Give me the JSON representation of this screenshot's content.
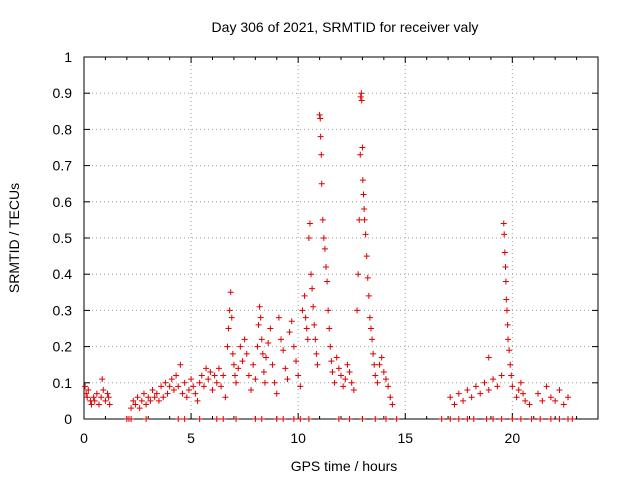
{
  "chart_data": {
    "type": "scatter",
    "title": "Day 306 of 2021, SRMTID for receiver valy",
    "xlabel": "GPS time / hours",
    "ylabel": "SRMTID / TECUs",
    "xlim": [
      0,
      24
    ],
    "ylim": [
      0,
      1
    ],
    "xticks": [
      0,
      5,
      10,
      15,
      20
    ],
    "xtick_labels": [
      "0",
      "5",
      "10",
      "15",
      "20"
    ],
    "yticks": [
      0,
      0.1,
      0.2,
      0.3,
      0.4,
      0.5,
      0.6,
      0.7,
      0.8,
      0.9,
      1
    ],
    "ytick_labels": [
      "0",
      "0.1",
      "0.2",
      "0.3",
      "0.4",
      "0.5",
      "0.6",
      "0.7",
      "0.8",
      "0.9",
      "1"
    ],
    "grid": true,
    "marker": "+",
    "series": [
      {
        "name": "SRMTID",
        "color": "#e00000",
        "points": [
          [
            0.05,
            0.09
          ],
          [
            0.1,
            0.07
          ],
          [
            0.15,
            0.06
          ],
          [
            0.2,
            0.08
          ],
          [
            0.3,
            0.05
          ],
          [
            0.35,
            0.04
          ],
          [
            0.45,
            0.06
          ],
          [
            0.5,
            0.05
          ],
          [
            0.6,
            0.07
          ],
          [
            0.7,
            0.04
          ],
          [
            0.8,
            0.06
          ],
          [
            0.85,
            0.11
          ],
          [
            0.9,
            0.08
          ],
          [
            1.0,
            0.05
          ],
          [
            1.1,
            0.07
          ],
          [
            1.15,
            0.06
          ],
          [
            1.2,
            0.04
          ],
          [
            2.0,
            0.0
          ],
          [
            2.1,
            0.0
          ],
          [
            2.2,
            0.0
          ],
          [
            2.9,
            0.0
          ],
          [
            2.2,
            0.03
          ],
          [
            2.3,
            0.05
          ],
          [
            2.4,
            0.04
          ],
          [
            2.5,
            0.06
          ],
          [
            2.6,
            0.03
          ],
          [
            2.7,
            0.05
          ],
          [
            2.8,
            0.07
          ],
          [
            2.9,
            0.04
          ],
          [
            3.0,
            0.06
          ],
          [
            3.1,
            0.05
          ],
          [
            3.2,
            0.08
          ],
          [
            3.3,
            0.06
          ],
          [
            3.4,
            0.07
          ],
          [
            3.5,
            0.05
          ],
          [
            3.6,
            0.09
          ],
          [
            3.7,
            0.06
          ],
          [
            3.8,
            0.1
          ],
          [
            3.9,
            0.07
          ],
          [
            4.0,
            0.09
          ],
          [
            4.1,
            0.11
          ],
          [
            4.2,
            0.08
          ],
          [
            4.3,
            0.12
          ],
          [
            4.4,
            0.09
          ],
          [
            4.5,
            0.15
          ],
          [
            4.6,
            0.07
          ],
          [
            4.7,
            0.1
          ],
          [
            4.8,
            0.06
          ],
          [
            4.4,
            0.0
          ],
          [
            4.7,
            0.0
          ],
          [
            5.4,
            0.0
          ],
          [
            6.2,
            0.0
          ],
          [
            6.5,
            0.0
          ],
          [
            7.1,
            0.0
          ],
          [
            4.9,
            0.08
          ],
          [
            5.0,
            0.11
          ],
          [
            5.1,
            0.09
          ],
          [
            5.2,
            0.07
          ],
          [
            5.3,
            0.05
          ],
          [
            5.4,
            0.1
          ],
          [
            5.5,
            0.12
          ],
          [
            5.6,
            0.09
          ],
          [
            5.7,
            0.14
          ],
          [
            5.8,
            0.11
          ],
          [
            5.9,
            0.13
          ],
          [
            6.0,
            0.08
          ],
          [
            6.1,
            0.12
          ],
          [
            6.2,
            0.1
          ],
          [
            6.3,
            0.14
          ],
          [
            6.4,
            0.09
          ],
          [
            6.5,
            0.12
          ],
          [
            6.6,
            0.06
          ],
          [
            6.7,
            0.2
          ],
          [
            6.75,
            0.25
          ],
          [
            6.8,
            0.3
          ],
          [
            6.85,
            0.35
          ],
          [
            6.9,
            0.28
          ],
          [
            6.95,
            0.18
          ],
          [
            7.0,
            0.15
          ],
          [
            7.05,
            0.12
          ],
          [
            7.1,
            0.1
          ],
          [
            7.2,
            0.14
          ],
          [
            7.3,
            0.2
          ],
          [
            7.4,
            0.16
          ],
          [
            7.5,
            0.22
          ],
          [
            7.6,
            0.18
          ],
          [
            7.7,
            0.12
          ],
          [
            7.8,
            0.08
          ],
          [
            7.9,
            0.15
          ],
          [
            8.0,
            0.11
          ],
          [
            8.1,
            0.2
          ],
          [
            8.15,
            0.26
          ],
          [
            8.2,
            0.31
          ],
          [
            8.25,
            0.28
          ],
          [
            8.3,
            0.22
          ],
          [
            8.35,
            0.18
          ],
          [
            8.4,
            0.13
          ],
          [
            8.45,
            0.1
          ],
          [
            8.5,
            0.17
          ],
          [
            8.6,
            0.21
          ],
          [
            8.7,
            0.25
          ],
          [
            8.8,
            0.15
          ],
          [
            8.9,
            0.1
          ],
          [
            9.0,
            0.07
          ],
          [
            8.0,
            0.0
          ],
          [
            8.3,
            0.0
          ],
          [
            9.0,
            0.0
          ],
          [
            9.3,
            0.0
          ],
          [
            9.8,
            0.0
          ],
          [
            10.1,
            0.0
          ],
          [
            10.5,
            0.0
          ],
          [
            9.1,
            0.28
          ],
          [
            9.2,
            0.22
          ],
          [
            9.3,
            0.19
          ],
          [
            9.4,
            0.14
          ],
          [
            9.5,
            0.11
          ],
          [
            9.6,
            0.24
          ],
          [
            9.7,
            0.27
          ],
          [
            9.8,
            0.2
          ],
          [
            9.9,
            0.16
          ],
          [
            10.0,
            0.12
          ],
          [
            10.1,
            0.09
          ],
          [
            10.2,
            0.3
          ],
          [
            10.3,
            0.34
          ],
          [
            10.35,
            0.28
          ],
          [
            10.4,
            0.25
          ],
          [
            10.45,
            0.22
          ],
          [
            10.5,
            0.5
          ],
          [
            10.55,
            0.54
          ],
          [
            10.6,
            0.4
          ],
          [
            10.65,
            0.36
          ],
          [
            10.7,
            0.31
          ],
          [
            10.75,
            0.26
          ],
          [
            10.8,
            0.22
          ],
          [
            10.85,
            0.18
          ],
          [
            10.9,
            0.15
          ],
          [
            11.0,
            0.84
          ],
          [
            11.03,
            0.83
          ],
          [
            11.05,
            0.78
          ],
          [
            11.08,
            0.73
          ],
          [
            11.1,
            0.65
          ],
          [
            11.15,
            0.55
          ],
          [
            11.2,
            0.5
          ],
          [
            11.25,
            0.47
          ],
          [
            11.3,
            0.42
          ],
          [
            11.35,
            0.38
          ],
          [
            11.4,
            0.3
          ],
          [
            11.45,
            0.25
          ],
          [
            11.5,
            0.2
          ],
          [
            11.55,
            0.16
          ],
          [
            11.6,
            0.13
          ],
          [
            11.7,
            0.1
          ],
          [
            11.8,
            0.17
          ],
          [
            11.9,
            0.14
          ],
          [
            12.0,
            0.12
          ],
          [
            12.1,
            0.09
          ],
          [
            12.2,
            0.11
          ],
          [
            12.3,
            0.15
          ],
          [
            12.4,
            0.13
          ],
          [
            12.5,
            0.1
          ],
          [
            12.6,
            0.08
          ],
          [
            12.75,
            0.3
          ],
          [
            12.8,
            0.4
          ],
          [
            12.85,
            0.55
          ],
          [
            12.9,
            0.73
          ],
          [
            12.92,
            0.89
          ],
          [
            12.95,
            0.9
          ],
          [
            12.97,
            0.88
          ],
          [
            13.0,
            0.75
          ],
          [
            13.02,
            0.66
          ],
          [
            13.05,
            0.62
          ],
          [
            13.08,
            0.58
          ],
          [
            13.1,
            0.55
          ],
          [
            13.15,
            0.51
          ],
          [
            13.2,
            0.45
          ],
          [
            13.25,
            0.39
          ],
          [
            13.3,
            0.34
          ],
          [
            13.35,
            0.28
          ],
          [
            13.4,
            0.25
          ],
          [
            13.45,
            0.22
          ],
          [
            13.5,
            0.18
          ],
          [
            13.55,
            0.15
          ],
          [
            13.6,
            0.12
          ],
          [
            13.7,
            0.1
          ],
          [
            11.9,
            0.0
          ],
          [
            12.4,
            0.0
          ],
          [
            13.0,
            0.0
          ],
          [
            13.6,
            0.0
          ],
          [
            14.1,
            0.0
          ],
          [
            14.6,
            0.0
          ],
          [
            13.8,
            0.15
          ],
          [
            13.9,
            0.17
          ],
          [
            14.0,
            0.13
          ],
          [
            14.1,
            0.11
          ],
          [
            14.2,
            0.09
          ],
          [
            14.3,
            0.06
          ],
          [
            14.4,
            0.04
          ],
          [
            16.7,
            0.0
          ],
          [
            17.1,
            0.0
          ],
          [
            17.5,
            0.0
          ],
          [
            17.9,
            0.0
          ],
          [
            18.2,
            0.0
          ],
          [
            18.8,
            0.0
          ],
          [
            19.1,
            0.0
          ],
          [
            19.5,
            0.0
          ],
          [
            20.0,
            0.0
          ],
          [
            20.4,
            0.0
          ],
          [
            20.9,
            0.0
          ],
          [
            21.3,
            0.0
          ],
          [
            21.8,
            0.0
          ],
          [
            22.2,
            0.0
          ],
          [
            22.6,
            0.0
          ],
          [
            22.8,
            0.0
          ],
          [
            17.1,
            0.06
          ],
          [
            17.3,
            0.04
          ],
          [
            17.5,
            0.07
          ],
          [
            17.7,
            0.05
          ],
          [
            17.9,
            0.08
          ],
          [
            18.1,
            0.06
          ],
          [
            18.3,
            0.09
          ],
          [
            18.5,
            0.07
          ],
          [
            18.7,
            0.1
          ],
          [
            18.9,
            0.08
          ],
          [
            19.1,
            0.11
          ],
          [
            19.3,
            0.09
          ],
          [
            19.5,
            0.12
          ],
          [
            18.9,
            0.17
          ],
          [
            19.6,
            0.54
          ],
          [
            19.62,
            0.51
          ],
          [
            19.65,
            0.46
          ],
          [
            19.68,
            0.42
          ],
          [
            19.7,
            0.38
          ],
          [
            19.72,
            0.33
          ],
          [
            19.75,
            0.3
          ],
          [
            19.78,
            0.26
          ],
          [
            19.8,
            0.22
          ],
          [
            19.85,
            0.19
          ],
          [
            19.9,
            0.15
          ],
          [
            19.95,
            0.12
          ],
          [
            20.0,
            0.09
          ],
          [
            20.2,
            0.06
          ],
          [
            20.3,
            0.08
          ],
          [
            20.4,
            0.1
          ],
          [
            20.5,
            0.07
          ],
          [
            20.6,
            0.05
          ],
          [
            20.8,
            0.04
          ],
          [
            21.2,
            0.07
          ],
          [
            21.4,
            0.05
          ],
          [
            21.6,
            0.09
          ],
          [
            21.8,
            0.06
          ],
          [
            22.0,
            0.05
          ],
          [
            22.2,
            0.08
          ],
          [
            22.4,
            0.04
          ],
          [
            22.6,
            0.06
          ]
        ]
      }
    ]
  }
}
